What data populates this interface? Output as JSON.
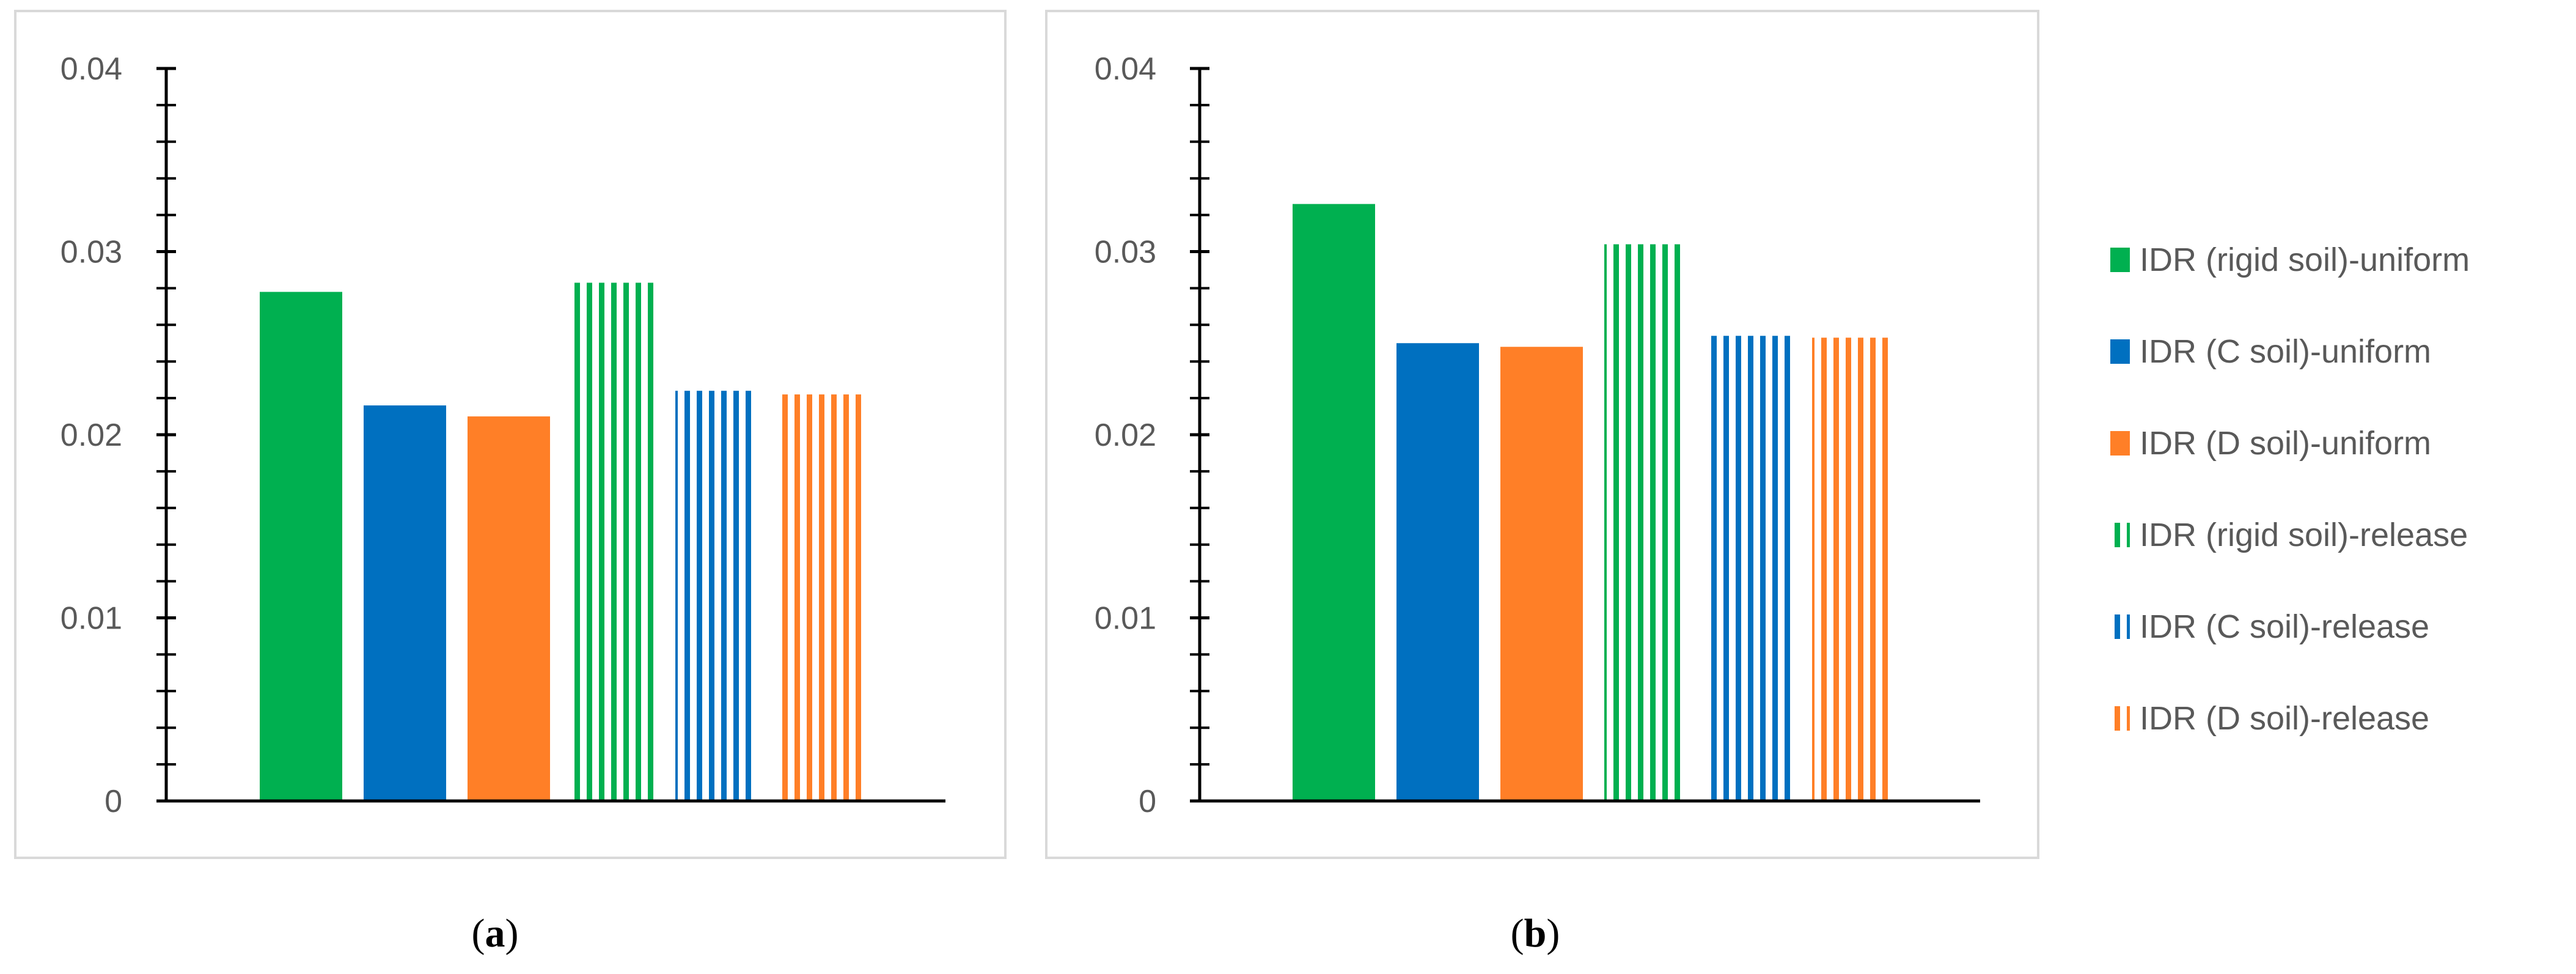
{
  "colors": {
    "green": "#00b050",
    "blue": "#0070c0",
    "orange": "#ff7f27",
    "axis": "#000000",
    "frame": "#d9d9d9",
    "text": "#595959"
  },
  "legend": [
    {
      "label": "IDR (rigid soil)-uniform",
      "color": "#00b050",
      "pattern": "solid"
    },
    {
      "label": "IDR (C soil)-uniform",
      "color": "#0070c0",
      "pattern": "solid"
    },
    {
      "label": "IDR (D soil)-uniform",
      "color": "#ff7f27",
      "pattern": "solid"
    },
    {
      "label": "IDR (rigid soil)-release",
      "color": "#00b050",
      "pattern": "stripes"
    },
    {
      "label": "IDR (C soil)-release",
      "color": "#0070c0",
      "pattern": "stripes"
    },
    {
      "label": "IDR (D soil)-release",
      "color": "#ff7f27",
      "pattern": "stripes"
    }
  ],
  "captions": {
    "a": {
      "open": "(",
      "letter": "a",
      "close": ")"
    },
    "b": {
      "open": "(",
      "letter": "b",
      "close": ")"
    }
  },
  "chart_data": [
    {
      "type": "bar",
      "id": "a",
      "title": "",
      "xlabel": "",
      "ylabel": "",
      "ylim": [
        0,
        0.04
      ],
      "yticks": [
        "0",
        "0.01",
        "0.02",
        "0.03",
        "0.04"
      ],
      "minor_ticks_per_major": 5,
      "series": [
        {
          "name": "IDR (rigid soil)-uniform",
          "value": 0.0278
        },
        {
          "name": "IDR (C soil)-uniform",
          "value": 0.0216
        },
        {
          "name": "IDR (D soil)-uniform",
          "value": 0.021
        },
        {
          "name": "IDR (rigid soil)-release",
          "value": 0.0283
        },
        {
          "name": "IDR (C soil)-release",
          "value": 0.0224
        },
        {
          "name": "IDR (D soil)-release",
          "value": 0.0222
        }
      ]
    },
    {
      "type": "bar",
      "id": "b",
      "title": "",
      "xlabel": "",
      "ylabel": "",
      "ylim": [
        0,
        0.04
      ],
      "yticks": [
        "0",
        "0.01",
        "0.02",
        "0.03",
        "0.04"
      ],
      "minor_ticks_per_major": 5,
      "series": [
        {
          "name": "IDR (rigid soil)-uniform",
          "value": 0.0326
        },
        {
          "name": "IDR (C soil)-uniform",
          "value": 0.025
        },
        {
          "name": "IDR (D soil)-uniform",
          "value": 0.0248
        },
        {
          "name": "IDR (rigid soil)-release",
          "value": 0.0304
        },
        {
          "name": "IDR (C soil)-release",
          "value": 0.0254
        },
        {
          "name": "IDR (D soil)-release",
          "value": 0.0253
        }
      ]
    }
  ]
}
